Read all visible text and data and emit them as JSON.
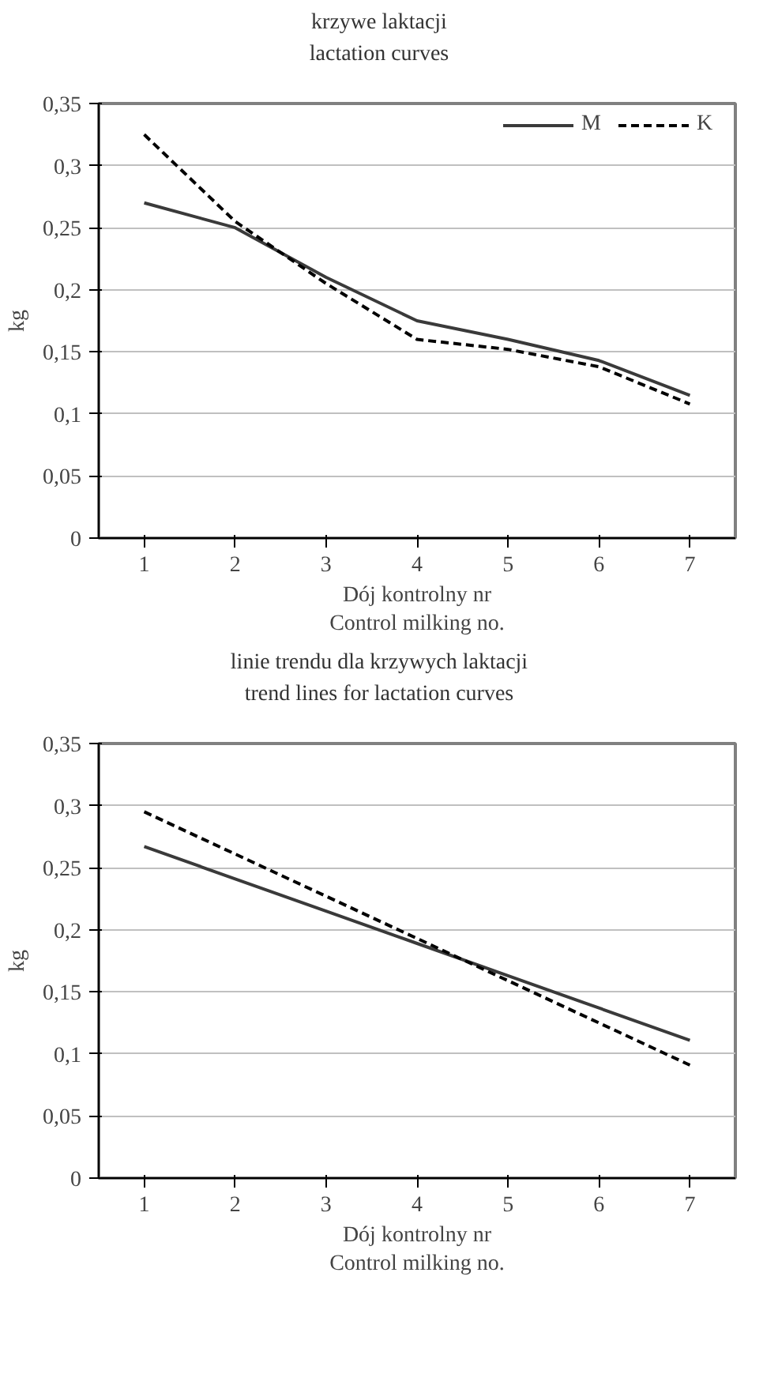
{
  "chart_data": [
    {
      "type": "line",
      "title": "krzywe laktacji\nlactation curves",
      "xlabel": "Dój kontrolny nr\nControl milking no.",
      "ylabel": "kg",
      "categories": [
        "1",
        "2",
        "3",
        "4",
        "5",
        "6",
        "7"
      ],
      "series": [
        {
          "name": "M",
          "color": "#3a3a3a",
          "line_style": "solid",
          "values": [
            0.27,
            0.25,
            0.21,
            0.175,
            0.16,
            0.143,
            0.115
          ]
        },
        {
          "name": "K",
          "color": "#000000",
          "line_style": "dashed",
          "values": [
            0.325,
            0.255,
            0.205,
            0.16,
            0.152,
            0.138,
            0.108
          ]
        }
      ],
      "ylim": [
        0,
        0.35
      ],
      "yticks": [
        {
          "value": 0,
          "label": "0"
        },
        {
          "value": 0.05,
          "label": "0,05"
        },
        {
          "value": 0.1,
          "label": "0,1"
        },
        {
          "value": 0.15,
          "label": "0,15"
        },
        {
          "value": 0.2,
          "label": "0,2"
        },
        {
          "value": 0.25,
          "label": "0,25"
        },
        {
          "value": 0.3,
          "label": "0,3"
        },
        {
          "value": 0.35,
          "label": "0,35"
        }
      ],
      "grid": "y",
      "legend": "top right"
    },
    {
      "type": "line",
      "title": "linie trendu dla krzywych laktacji\ntrend lines for lactation curves",
      "xlabel": "Dój kontrolny nr\nControl milking no.",
      "ylabel": "kg",
      "categories": [
        "1",
        "2",
        "3",
        "4",
        "5",
        "6",
        "7"
      ],
      "series": [
        {
          "color": "#3a3a3a",
          "line_style": "solid",
          "values": [
            0.267,
            0.241,
            0.215,
            0.189,
            0.163,
            0.137,
            0.111
          ]
        },
        {
          "color": "#000000",
          "line_style": "dashed",
          "values": [
            0.295,
            0.261,
            0.227,
            0.193,
            0.159,
            0.125,
            0.091
          ]
        }
      ],
      "ylim": [
        0,
        0.35
      ],
      "yticks": [
        {
          "value": 0,
          "label": "0"
        },
        {
          "value": 0.05,
          "label": "0,05"
        },
        {
          "value": 0.1,
          "label": "0,1"
        },
        {
          "value": 0.15,
          "label": "0,15"
        },
        {
          "value": 0.2,
          "label": "0,2"
        },
        {
          "value": 0.25,
          "label": "0,25"
        },
        {
          "value": 0.3,
          "label": "0,3"
        },
        {
          "value": 0.35,
          "label": "0,35"
        }
      ],
      "grid": "y",
      "legend": false
    }
  ]
}
